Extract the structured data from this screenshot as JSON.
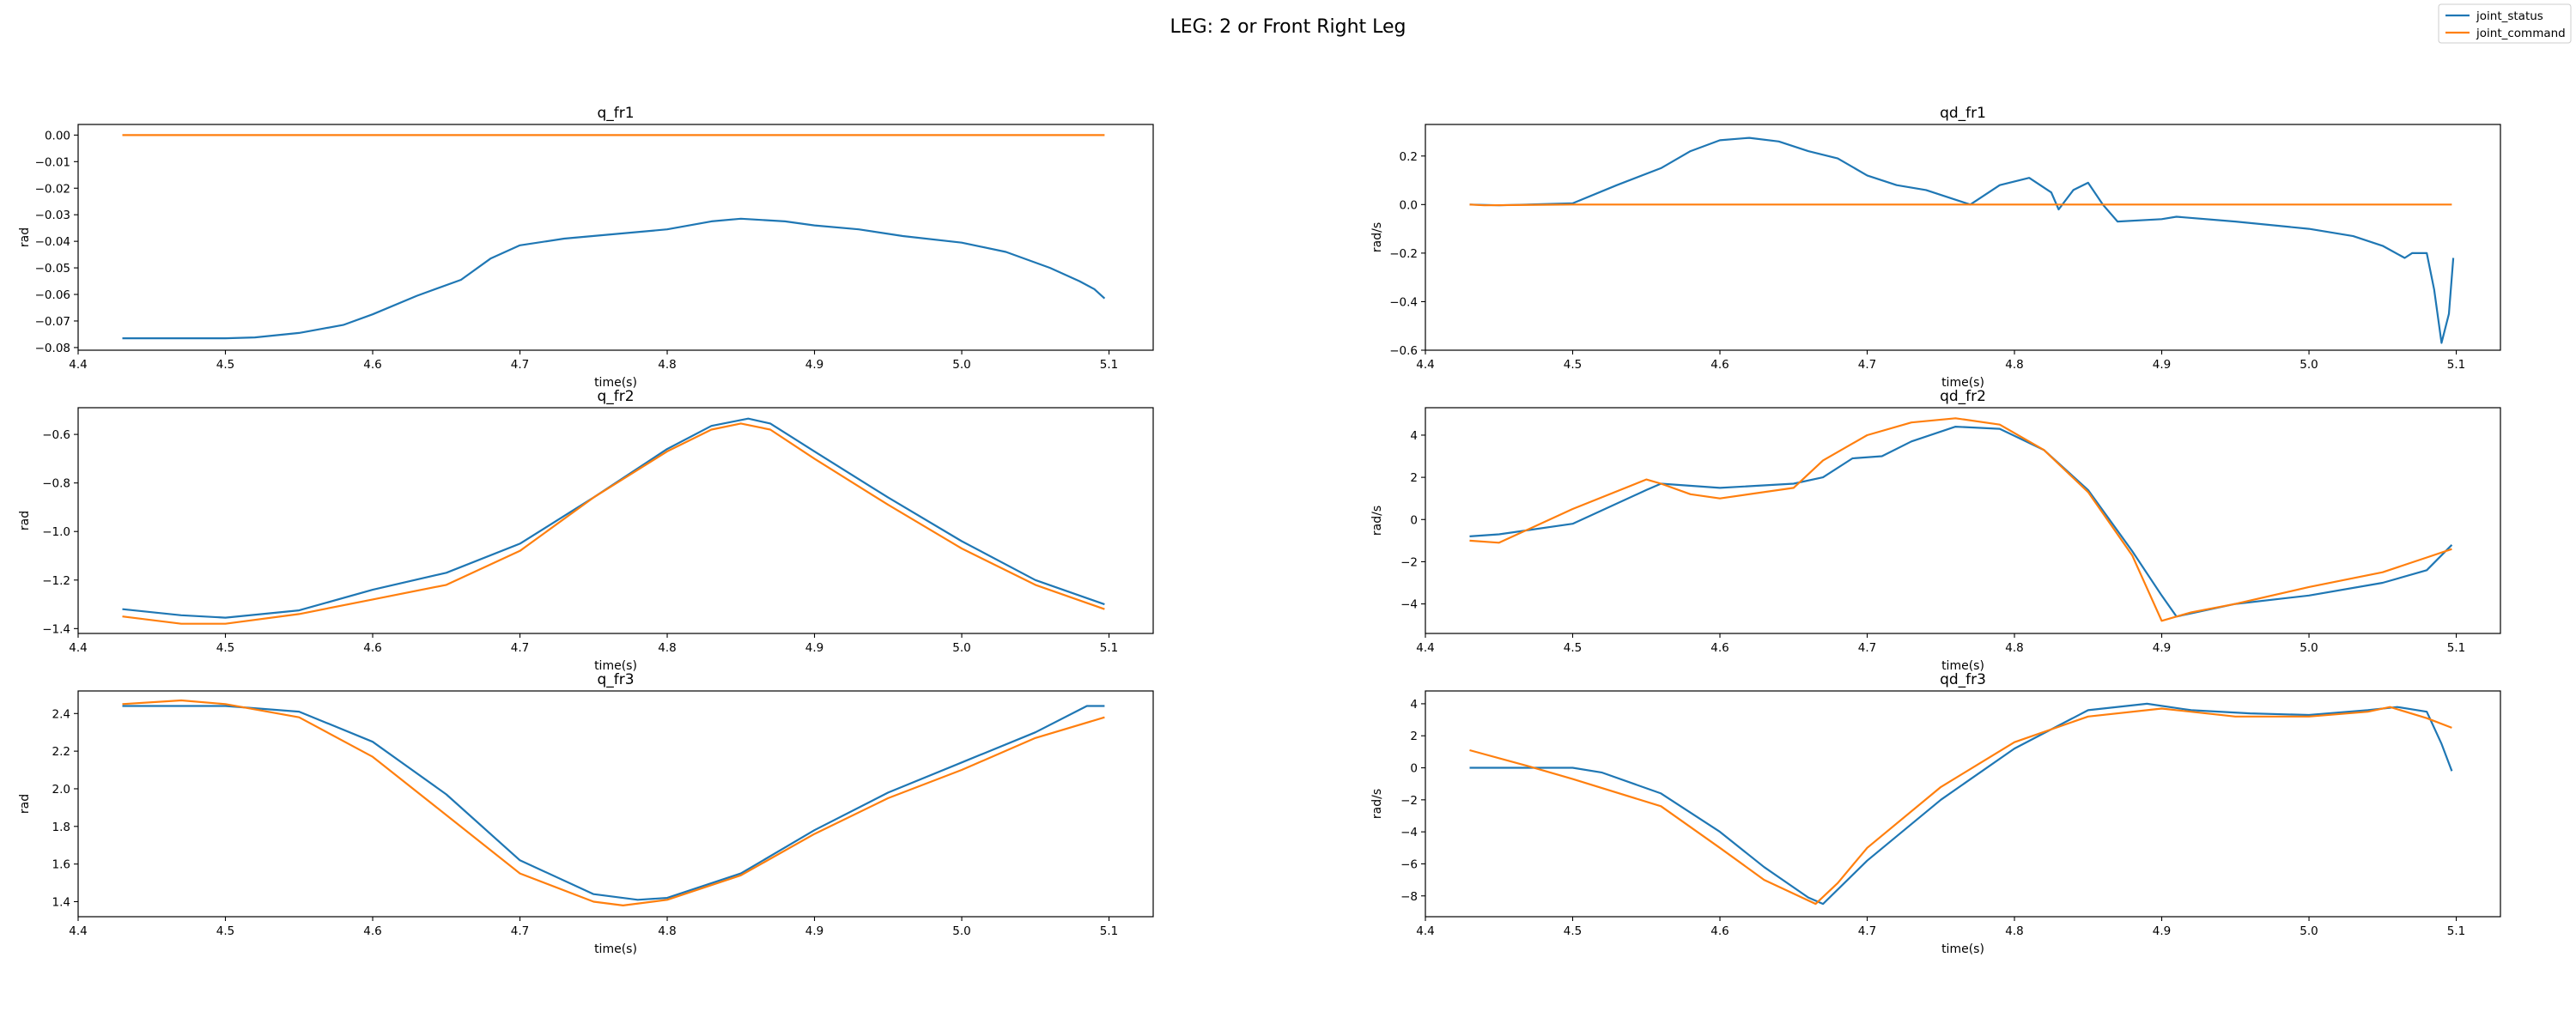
{
  "figure": {
    "title": "LEG: 2 or Front Right Leg"
  },
  "legend": {
    "placement": "top-right",
    "entries": [
      {
        "label": "joint_status",
        "color": "#1f77b4"
      },
      {
        "label": "joint_command",
        "color": "#ff7f0e"
      }
    ]
  },
  "chart_data": [
    {
      "type": "line",
      "title": "q_fr1",
      "xlabel": "time(s)",
      "ylabel": "rad",
      "xlim": [
        4.4,
        5.13
      ],
      "ylim": [
        -0.081,
        0.004
      ],
      "xticks": [
        4.4,
        4.5,
        4.6,
        4.7,
        4.8,
        4.9,
        5.0,
        5.1
      ],
      "xtick_labels": [
        "4.4",
        "4.5",
        "4.6",
        "4.7",
        "4.8",
        "4.9",
        "5.0",
        "5.1"
      ],
      "yticks": [
        0.0,
        -0.01,
        -0.02,
        -0.03,
        -0.04,
        -0.05,
        -0.06,
        -0.07,
        -0.08
      ],
      "ytick_labels": [
        "0.00",
        "−0.01",
        "−0.02",
        "−0.03",
        "−0.04",
        "−0.05",
        "−0.06",
        "−0.07",
        "−0.08"
      ],
      "series": [
        {
          "name": "joint_status",
          "color": "#1f77b4",
          "x": [
            4.43,
            4.5,
            4.52,
            4.55,
            4.58,
            4.6,
            4.63,
            4.66,
            4.68,
            4.7,
            4.73,
            4.76,
            4.8,
            4.83,
            4.85,
            4.88,
            4.9,
            4.93,
            4.96,
            5.0,
            5.03,
            5.06,
            5.08,
            5.09,
            5.097
          ],
          "y": [
            -0.0765,
            -0.0765,
            -0.0762,
            -0.0745,
            -0.0715,
            -0.0675,
            -0.0605,
            -0.0545,
            -0.0465,
            -0.0415,
            -0.039,
            -0.0375,
            -0.0355,
            -0.0325,
            -0.0315,
            -0.0325,
            -0.034,
            -0.0355,
            -0.038,
            -0.0405,
            -0.044,
            -0.05,
            -0.055,
            -0.058,
            -0.0615
          ]
        },
        {
          "name": "joint_command",
          "color": "#ff7f0e",
          "x": [
            4.43,
            5.097
          ],
          "y": [
            0.0,
            0.0
          ]
        }
      ]
    },
    {
      "type": "line",
      "title": "qd_fr1",
      "xlabel": "time(s)",
      "ylabel": "rad/s",
      "xlim": [
        4.4,
        5.13
      ],
      "ylim": [
        -0.6,
        0.33
      ],
      "xticks": [
        4.4,
        4.5,
        4.6,
        4.7,
        4.8,
        4.9,
        5.0,
        5.1
      ],
      "xtick_labels": [
        "4.4",
        "4.5",
        "4.6",
        "4.7",
        "4.8",
        "4.9",
        "5.0",
        "5.1"
      ],
      "yticks": [
        0.2,
        0.0,
        -0.2,
        -0.4,
        -0.6
      ],
      "ytick_labels": [
        "0.2",
        "0.0",
        "−0.2",
        "−0.4",
        "−0.6"
      ],
      "series": [
        {
          "name": "joint_status",
          "color": "#1f77b4",
          "x": [
            4.43,
            4.45,
            4.5,
            4.53,
            4.56,
            4.58,
            4.6,
            4.62,
            4.64,
            4.66,
            4.68,
            4.7,
            4.72,
            4.74,
            4.76,
            4.77,
            4.79,
            4.81,
            4.825,
            4.83,
            4.84,
            4.85,
            4.86,
            4.87,
            4.9,
            4.91,
            4.95,
            5.0,
            5.03,
            5.05,
            5.065,
            5.07,
            5.08,
            5.085,
            5.09,
            5.095,
            5.098
          ],
          "y": [
            0.0,
            -0.003,
            0.005,
            0.08,
            0.15,
            0.22,
            0.265,
            0.275,
            0.26,
            0.22,
            0.19,
            0.12,
            0.08,
            0.06,
            0.02,
            0.0,
            0.08,
            0.11,
            0.05,
            -0.02,
            0.06,
            0.09,
            0.0,
            -0.07,
            -0.06,
            -0.05,
            -0.07,
            -0.1,
            -0.13,
            -0.17,
            -0.22,
            -0.2,
            -0.2,
            -0.35,
            -0.57,
            -0.45,
            -0.22
          ]
        },
        {
          "name": "joint_command",
          "color": "#ff7f0e",
          "x": [
            4.43,
            4.44,
            4.5,
            5.097
          ],
          "y": [
            0.0,
            -0.003,
            0.0,
            0.0
          ]
        }
      ]
    },
    {
      "type": "line",
      "title": "q_fr2",
      "xlabel": "time(s)",
      "ylabel": "rad",
      "xlim": [
        4.4,
        5.13
      ],
      "ylim": [
        -1.42,
        -0.49
      ],
      "xticks": [
        4.4,
        4.5,
        4.6,
        4.7,
        4.8,
        4.9,
        5.0,
        5.1
      ],
      "xtick_labels": [
        "4.4",
        "4.5",
        "4.6",
        "4.7",
        "4.8",
        "4.9",
        "5.0",
        "5.1"
      ],
      "yticks": [
        -0.6,
        -0.8,
        -1.0,
        -1.2,
        -1.4
      ],
      "ytick_labels": [
        "−0.6",
        "−0.8",
        "−1.0",
        "−1.2",
        "−1.4"
      ],
      "series": [
        {
          "name": "joint_status",
          "color": "#1f77b4",
          "x": [
            4.43,
            4.47,
            4.5,
            4.55,
            4.6,
            4.65,
            4.7,
            4.75,
            4.8,
            4.83,
            4.855,
            4.87,
            4.9,
            4.95,
            5.0,
            5.05,
            5.097
          ],
          "y": [
            -1.32,
            -1.345,
            -1.355,
            -1.325,
            -1.24,
            -1.17,
            -1.05,
            -0.86,
            -0.66,
            -0.565,
            -0.535,
            -0.555,
            -0.67,
            -0.86,
            -1.04,
            -1.2,
            -1.3
          ]
        },
        {
          "name": "joint_command",
          "color": "#ff7f0e",
          "x": [
            4.43,
            4.47,
            4.5,
            4.55,
            4.6,
            4.65,
            4.7,
            4.75,
            4.8,
            4.83,
            4.85,
            4.87,
            4.9,
            4.95,
            5.0,
            5.05,
            5.097
          ],
          "y": [
            -1.35,
            -1.38,
            -1.38,
            -1.34,
            -1.28,
            -1.22,
            -1.08,
            -0.86,
            -0.67,
            -0.58,
            -0.555,
            -0.58,
            -0.7,
            -0.89,
            -1.07,
            -1.22,
            -1.32
          ]
        }
      ]
    },
    {
      "type": "line",
      "title": "qd_fr2",
      "xlabel": "time(s)",
      "ylabel": "rad/s",
      "xlim": [
        4.4,
        5.13
      ],
      "ylim": [
        -5.4,
        5.3
      ],
      "xticks": [
        4.4,
        4.5,
        4.6,
        4.7,
        4.8,
        4.9,
        5.0,
        5.1
      ],
      "xtick_labels": [
        "4.4",
        "4.5",
        "4.6",
        "4.7",
        "4.8",
        "4.9",
        "5.0",
        "5.1"
      ],
      "yticks": [
        4,
        2,
        0,
        -2,
        -4
      ],
      "ytick_labels": [
        "4",
        "2",
        "0",
        "−2",
        "−4"
      ],
      "series": [
        {
          "name": "joint_status",
          "color": "#1f77b4",
          "x": [
            4.43,
            4.45,
            4.5,
            4.55,
            4.56,
            4.6,
            4.65,
            4.67,
            4.69,
            4.71,
            4.73,
            4.76,
            4.79,
            4.82,
            4.85,
            4.88,
            4.9,
            4.91,
            4.95,
            5.0,
            5.05,
            5.08,
            5.097
          ],
          "y": [
            -0.8,
            -0.7,
            -0.2,
            1.4,
            1.7,
            1.5,
            1.7,
            2.0,
            2.9,
            3.0,
            3.7,
            4.4,
            4.3,
            3.3,
            1.4,
            -1.5,
            -3.6,
            -4.6,
            -4.0,
            -3.6,
            -3.0,
            -2.4,
            -1.2
          ]
        },
        {
          "name": "joint_command",
          "color": "#ff7f0e",
          "x": [
            4.43,
            4.45,
            4.5,
            4.55,
            4.56,
            4.58,
            4.6,
            4.65,
            4.67,
            4.7,
            4.73,
            4.76,
            4.79,
            4.82,
            4.85,
            4.88,
            4.9,
            4.92,
            4.95,
            5.0,
            5.05,
            5.08,
            5.097
          ],
          "y": [
            -1.0,
            -1.1,
            0.5,
            1.9,
            1.7,
            1.2,
            1.0,
            1.5,
            2.8,
            4.0,
            4.6,
            4.8,
            4.5,
            3.3,
            1.3,
            -1.7,
            -4.8,
            -4.4,
            -4.0,
            -3.2,
            -2.5,
            -1.8,
            -1.4
          ]
        }
      ]
    },
    {
      "type": "line",
      "title": "q_fr3",
      "xlabel": "time(s)",
      "ylabel": "rad",
      "xlim": [
        4.4,
        5.13
      ],
      "ylim": [
        1.32,
        2.52
      ],
      "xticks": [
        4.4,
        4.5,
        4.6,
        4.7,
        4.8,
        4.9,
        5.0,
        5.1
      ],
      "xtick_labels": [
        "4.4",
        "4.5",
        "4.6",
        "4.7",
        "4.8",
        "4.9",
        "5.0",
        "5.1"
      ],
      "yticks": [
        2.4,
        2.2,
        2.0,
        1.8,
        1.6,
        1.4
      ],
      "ytick_labels": [
        "2.4",
        "2.2",
        "2.0",
        "1.8",
        "1.6",
        "1.4"
      ],
      "series": [
        {
          "name": "joint_status",
          "color": "#1f77b4",
          "x": [
            4.43,
            4.5,
            4.55,
            4.6,
            4.65,
            4.7,
            4.75,
            4.78,
            4.8,
            4.85,
            4.9,
            4.95,
            5.0,
            5.05,
            5.085,
            5.097
          ],
          "y": [
            2.44,
            2.44,
            2.41,
            2.25,
            1.97,
            1.62,
            1.44,
            1.41,
            1.42,
            1.55,
            1.78,
            1.98,
            2.14,
            2.3,
            2.44,
            2.44
          ]
        },
        {
          "name": "joint_command",
          "color": "#ff7f0e",
          "x": [
            4.43,
            4.47,
            4.5,
            4.55,
            4.6,
            4.65,
            4.7,
            4.75,
            4.77,
            4.8,
            4.85,
            4.9,
            4.95,
            5.0,
            5.05,
            5.097
          ],
          "y": [
            2.45,
            2.47,
            2.45,
            2.38,
            2.17,
            1.86,
            1.55,
            1.4,
            1.38,
            1.41,
            1.54,
            1.76,
            1.95,
            2.1,
            2.27,
            2.38
          ]
        }
      ]
    },
    {
      "type": "line",
      "title": "qd_fr3",
      "xlabel": "time(s)",
      "ylabel": "rad/s",
      "xlim": [
        4.4,
        5.13
      ],
      "ylim": [
        -9.3,
        4.8
      ],
      "xticks": [
        4.4,
        4.5,
        4.6,
        4.7,
        4.8,
        4.9,
        5.0,
        5.1
      ],
      "xtick_labels": [
        "4.4",
        "4.5",
        "4.6",
        "4.7",
        "4.8",
        "4.9",
        "5.0",
        "5.1"
      ],
      "yticks": [
        4,
        2,
        0,
        -2,
        -4,
        -6,
        -8
      ],
      "ytick_labels": [
        "4",
        "2",
        "0",
        "−2",
        "−4",
        "−6",
        "−8"
      ],
      "series": [
        {
          "name": "joint_status",
          "color": "#1f77b4",
          "x": [
            4.43,
            4.45,
            4.5,
            4.52,
            4.56,
            4.6,
            4.63,
            4.66,
            4.67,
            4.7,
            4.75,
            4.8,
            4.85,
            4.89,
            4.92,
            4.96,
            5.0,
            5.04,
            5.06,
            5.08,
            5.09,
            5.097
          ],
          "y": [
            0.0,
            0.0,
            0.0,
            -0.3,
            -1.6,
            -4.0,
            -6.2,
            -8.1,
            -8.5,
            -5.8,
            -2.0,
            1.2,
            3.6,
            4.0,
            3.6,
            3.4,
            3.3,
            3.6,
            3.8,
            3.5,
            1.5,
            -0.2
          ]
        },
        {
          "name": "joint_command",
          "color": "#ff7f0e",
          "x": [
            4.43,
            4.47,
            4.5,
            4.56,
            4.6,
            4.63,
            4.665,
            4.68,
            4.7,
            4.75,
            4.8,
            4.85,
            4.9,
            4.95,
            5.0,
            5.04,
            5.055,
            5.08,
            5.097
          ],
          "y": [
            1.1,
            0.1,
            -0.7,
            -2.4,
            -5.0,
            -7.0,
            -8.5,
            -7.2,
            -5.0,
            -1.2,
            1.6,
            3.2,
            3.7,
            3.2,
            3.2,
            3.5,
            3.8,
            3.1,
            2.5
          ]
        }
      ]
    }
  ]
}
